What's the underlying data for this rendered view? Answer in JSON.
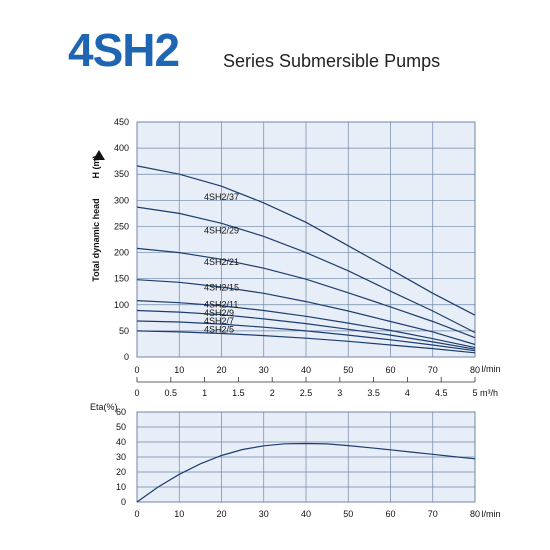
{
  "header": {
    "model": "4SH2",
    "subtitle": "Series Submersible Pumps"
  },
  "colors": {
    "plot_bg": "#e8eef8",
    "grid": "#6f86a8",
    "curve": "#1c3d6e",
    "title": "#1e66b4"
  },
  "chart_data": [
    {
      "type": "line",
      "title": "",
      "ylabel": "Total dynamic head",
      "ylabel_unit": "H (m)",
      "ylim": [
        0,
        450
      ],
      "yticks": [
        "0",
        "50",
        "100",
        "150",
        "200",
        "250",
        "300",
        "350",
        "400",
        "450"
      ],
      "xlim": [
        0,
        80
      ],
      "xticks": [
        "0",
        "10",
        "20",
        "30",
        "40",
        "50",
        "60",
        "70",
        "80"
      ],
      "xlabel": "l/min",
      "x2lim": [
        0,
        5
      ],
      "x2ticks": [
        "0",
        "0.5",
        "1",
        "1.5",
        "2",
        "2.5",
        "3",
        "3.5",
        "4",
        "4.5",
        "5"
      ],
      "x2label": "m³/h",
      "grid": true,
      "x": [
        0,
        10,
        20,
        30,
        40,
        50,
        60,
        70,
        80
      ],
      "series": [
        {
          "name": "4SH2/37",
          "values": [
            366,
            350,
            327,
            295,
            258,
            213,
            168,
            122,
            80
          ]
        },
        {
          "name": "4SH2/29",
          "values": [
            287,
            275,
            256,
            231,
            200,
            165,
            126,
            88,
            47
          ]
        },
        {
          "name": "4SH2/21",
          "values": [
            208,
            200,
            187,
            170,
            149,
            123,
            96,
            68,
            37
          ]
        },
        {
          "name": "4SH2/15",
          "values": [
            148,
            143,
            134,
            122,
            106,
            88,
            68,
            48,
            24
          ]
        },
        {
          "name": "4SH2/11",
          "values": [
            108,
            104,
            98,
            89,
            78,
            65,
            51,
            35,
            18
          ]
        },
        {
          "name": "4SH2/9",
          "values": [
            89,
            86,
            81,
            73,
            64,
            53,
            42,
            29,
            15
          ]
        },
        {
          "name": "4SH2/7",
          "values": [
            69,
            67,
            63,
            57,
            50,
            42,
            33,
            23,
            12
          ]
        },
        {
          "name": "4SH2/5",
          "values": [
            50,
            48,
            45,
            41,
            36,
            30,
            23,
            16,
            8
          ]
        }
      ]
    },
    {
      "type": "line",
      "title": "",
      "ylabel": "Eta(%)",
      "ylim": [
        0,
        60
      ],
      "yticks": [
        "0",
        "10",
        "20",
        "30",
        "40",
        "50",
        "60"
      ],
      "xlim": [
        0,
        80
      ],
      "xticks": [
        "0",
        "10",
        "20",
        "30",
        "40",
        "50",
        "60",
        "70",
        "80"
      ],
      "xlabel": "l/min",
      "grid": true,
      "x": [
        0,
        5,
        10,
        15,
        20,
        25,
        30,
        35,
        40,
        45,
        50,
        55,
        60,
        65,
        70,
        75,
        80
      ],
      "series": [
        {
          "values": [
            0,
            10,
            18.5,
            25.5,
            31,
            35,
            37.5,
            38.8,
            39,
            38.7,
            37.6,
            36.2,
            34.8,
            33.3,
            31.8,
            30.3,
            28.8
          ]
        }
      ]
    }
  ]
}
